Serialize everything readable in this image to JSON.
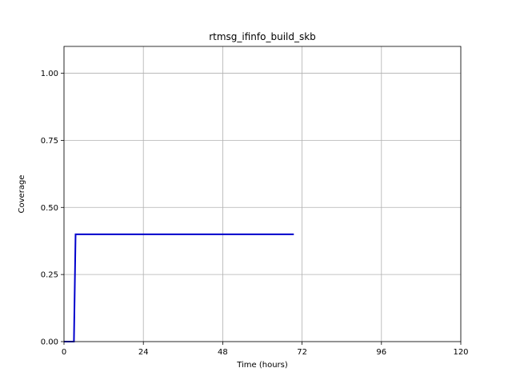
{
  "chart_data": {
    "type": "line",
    "title": "rtmsg_ifinfo_build_skb",
    "xlabel": "Time (hours)",
    "ylabel": "Coverage",
    "xlim": [
      0,
      120
    ],
    "ylim": [
      0,
      1.1
    ],
    "xticks": [
      0,
      24,
      48,
      72,
      96,
      120
    ],
    "xtick_labels": [
      "0",
      "24",
      "48",
      "72",
      "96",
      "120"
    ],
    "yticks": [
      0.0,
      0.25,
      0.5,
      0.75,
      1.0
    ],
    "ytick_labels": [
      "0.00",
      "0.25",
      "0.50",
      "0.75",
      "1.00"
    ],
    "grid": true,
    "series": [
      {
        "color": "#0000cc",
        "x": [
          0,
          3,
          3.5,
          69.5
        ],
        "y": [
          0,
          0,
          0.4,
          0.4
        ]
      }
    ]
  }
}
